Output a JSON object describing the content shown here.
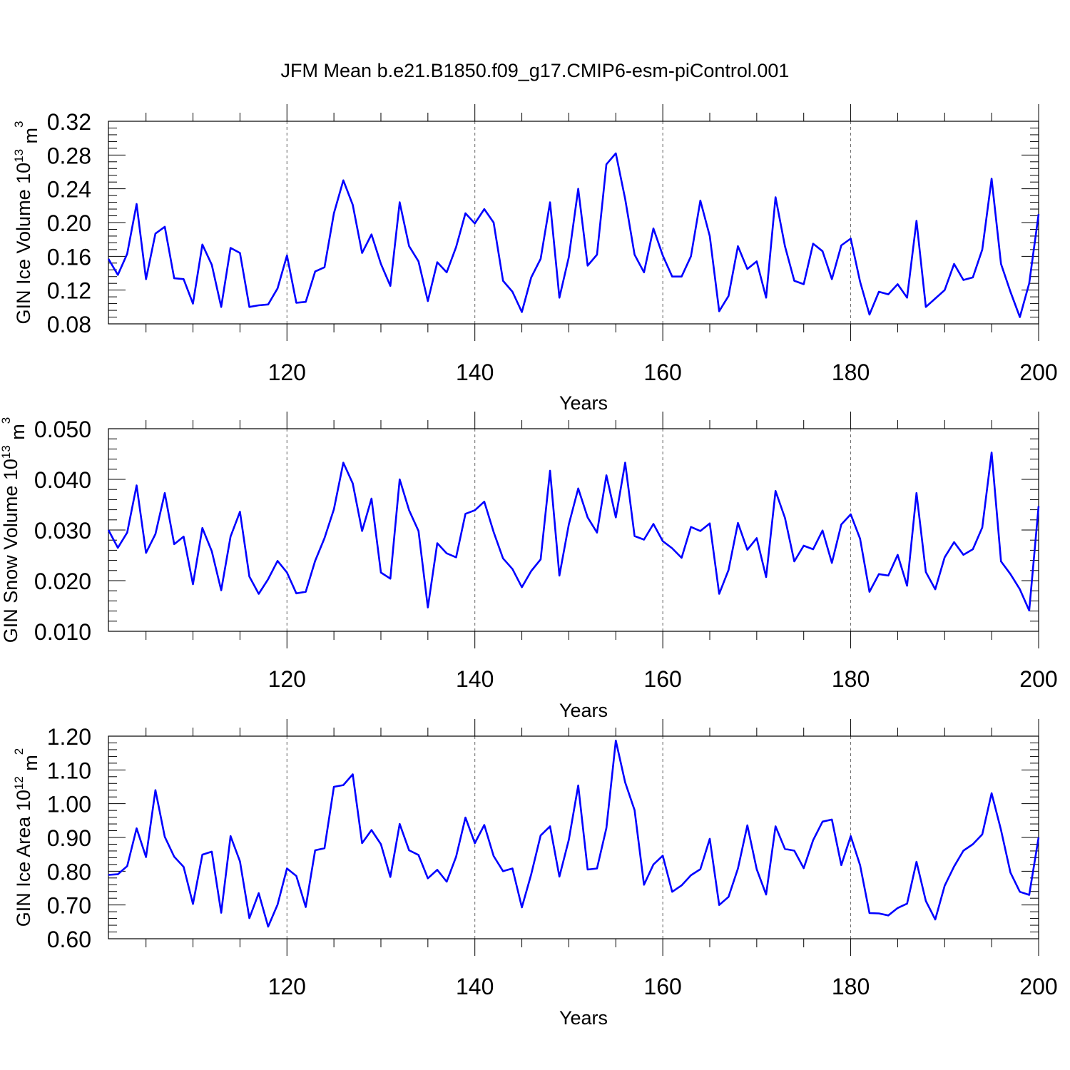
{
  "title": "JFM Mean b.e21.B1850.f09_g17.CMIP6-esm-piControl.001",
  "chart_data": [
    {
      "type": "line",
      "xlabel": "Years",
      "ylabel": {
        "main": "GIN Ice Volume 10",
        "sup": "13",
        "unit": " m",
        "unit_sup": "3"
      },
      "xlim": [
        101,
        200
      ],
      "ylim": [
        0.08,
        0.32
      ],
      "xticks": [
        120,
        140,
        160,
        180,
        200
      ],
      "xtick_labels": [
        "120",
        "140",
        "160",
        "180",
        "200"
      ],
      "yticks": [
        0.08,
        0.12,
        0.16,
        0.2,
        0.24,
        0.28,
        0.32
      ],
      "ytick_labels": [
        "0.08",
        "0.12",
        "0.16",
        "0.20",
        "0.24",
        "0.28",
        "0.32"
      ],
      "grid": "vertical dashed at major x ticks",
      "line_color": "#0000ff",
      "x_start": 101,
      "values": [
        0.157,
        0.138,
        0.163,
        0.222,
        0.133,
        0.187,
        0.195,
        0.134,
        0.133,
        0.104,
        0.174,
        0.15,
        0.1,
        0.17,
        0.164,
        0.1,
        0.102,
        0.103,
        0.122,
        0.161,
        0.105,
        0.106,
        0.142,
        0.147,
        0.211,
        0.25,
        0.221,
        0.164,
        0.186,
        0.151,
        0.125,
        0.224,
        0.172,
        0.154,
        0.107,
        0.153,
        0.141,
        0.171,
        0.211,
        0.199,
        0.216,
        0.2,
        0.131,
        0.118,
        0.094,
        0.135,
        0.157,
        0.224,
        0.111,
        0.159,
        0.24,
        0.149,
        0.162,
        0.269,
        0.282,
        0.228,
        0.162,
        0.141,
        0.193,
        0.161,
        0.136,
        0.136,
        0.16,
        0.226,
        0.184,
        0.095,
        0.113,
        0.172,
        0.145,
        0.154,
        0.111,
        0.23,
        0.172,
        0.131,
        0.127,
        0.175,
        0.166,
        0.133,
        0.173,
        0.181,
        0.13,
        0.091,
        0.118,
        0.115,
        0.127,
        0.111,
        0.202,
        0.1,
        0.11,
        0.12,
        0.151,
        0.132,
        0.135,
        0.168,
        0.252,
        0.151,
        0.118,
        0.088,
        0.128,
        0.21
      ]
    },
    {
      "type": "line",
      "xlabel": "Years",
      "ylabel": {
        "main": "GIN Snow Volume 10",
        "sup": "13",
        "unit": " m",
        "unit_sup": "3"
      },
      "xlim": [
        101,
        200
      ],
      "ylim": [
        0.01,
        0.05
      ],
      "xticks": [
        120,
        140,
        160,
        180,
        200
      ],
      "xtick_labels": [
        "120",
        "140",
        "160",
        "180",
        "200"
      ],
      "yticks": [
        0.01,
        0.02,
        0.03,
        0.04,
        0.05
      ],
      "ytick_labels": [
        "0.010",
        "0.020",
        "0.030",
        "0.040",
        "0.050"
      ],
      "grid": "vertical dashed at major x ticks",
      "line_color": "#0000ff",
      "x_start": 101,
      "values": [
        0.03,
        0.0265,
        0.0295,
        0.0388,
        0.0255,
        0.0292,
        0.0373,
        0.0272,
        0.0287,
        0.0193,
        0.0304,
        0.0258,
        0.0181,
        0.0287,
        0.0336,
        0.0208,
        0.0174,
        0.0203,
        0.0239,
        0.0216,
        0.0175,
        0.0178,
        0.0239,
        0.0284,
        0.0341,
        0.0433,
        0.0392,
        0.0298,
        0.0362,
        0.0216,
        0.0204,
        0.04,
        0.0339,
        0.0298,
        0.0147,
        0.0274,
        0.0254,
        0.0246,
        0.0332,
        0.0339,
        0.0356,
        0.0296,
        0.0244,
        0.0223,
        0.0187,
        0.0219,
        0.0242,
        0.0417,
        0.021,
        0.0311,
        0.0382,
        0.0325,
        0.0295,
        0.0408,
        0.0325,
        0.0433,
        0.0288,
        0.0281,
        0.0312,
        0.0278,
        0.0264,
        0.0245,
        0.0306,
        0.0298,
        0.0313,
        0.0174,
        0.0221,
        0.0314,
        0.0261,
        0.0284,
        0.0207,
        0.0377,
        0.0324,
        0.0238,
        0.0269,
        0.0262,
        0.0299,
        0.0235,
        0.0311,
        0.0331,
        0.0283,
        0.0178,
        0.0213,
        0.021,
        0.0251,
        0.019,
        0.0373,
        0.0217,
        0.0183,
        0.0246,
        0.0276,
        0.0251,
        0.0262,
        0.0305,
        0.0453,
        0.0238,
        0.0213,
        0.0183,
        0.0141,
        0.0347
      ]
    },
    {
      "type": "line",
      "xlabel": "Years",
      "ylabel": {
        "main": "GIN Ice Area 10",
        "sup": "12",
        "unit": " m",
        "unit_sup": "2"
      },
      "xlim": [
        101,
        200
      ],
      "ylim": [
        0.6,
        1.2
      ],
      "xticks": [
        120,
        140,
        160,
        180,
        200
      ],
      "xtick_labels": [
        "120",
        "140",
        "160",
        "180",
        "200"
      ],
      "yticks": [
        0.6,
        0.7,
        0.8,
        0.9,
        1.0,
        1.1,
        1.2
      ],
      "ytick_labels": [
        "0.60",
        "0.70",
        "0.80",
        "0.90",
        "1.00",
        "1.10",
        "1.20"
      ],
      "grid": "vertical dashed at major x ticks",
      "line_color": "#0000ff",
      "x_start": 101,
      "values": [
        0.789,
        0.791,
        0.815,
        0.927,
        0.842,
        1.04,
        0.902,
        0.843,
        0.813,
        0.703,
        0.849,
        0.858,
        0.677,
        0.904,
        0.829,
        0.661,
        0.735,
        0.636,
        0.701,
        0.808,
        0.786,
        0.694,
        0.862,
        0.868,
        1.05,
        1.055,
        1.087,
        0.883,
        0.922,
        0.88,
        0.783,
        0.94,
        0.862,
        0.848,
        0.779,
        0.804,
        0.769,
        0.843,
        0.959,
        0.883,
        0.937,
        0.845,
        0.8,
        0.808,
        0.693,
        0.791,
        0.906,
        0.933,
        0.784,
        0.893,
        1.054,
        0.805,
        0.808,
        0.928,
        1.187,
        1.063,
        0.981,
        0.76,
        0.82,
        0.846,
        0.739,
        0.758,
        0.788,
        0.806,
        0.896,
        0.7,
        0.724,
        0.808,
        0.936,
        0.806,
        0.731,
        0.933,
        0.866,
        0.861,
        0.809,
        0.892,
        0.947,
        0.953,
        0.818,
        0.904,
        0.818,
        0.676,
        0.675,
        0.669,
        0.691,
        0.704,
        0.828,
        0.712,
        0.657,
        0.757,
        0.814,
        0.861,
        0.88,
        0.909,
        1.031,
        0.922,
        0.796,
        0.739,
        0.73,
        0.9
      ]
    }
  ]
}
